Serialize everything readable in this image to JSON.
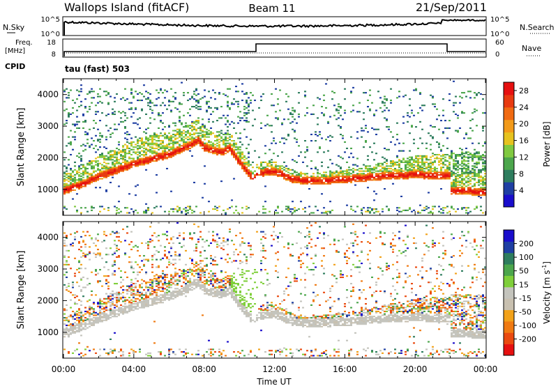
{
  "header": {
    "station": "Wallops Island (fitACF)",
    "beam": "Beam 11",
    "date": "21/Sep/2011"
  },
  "status_panels": {
    "nsky_label": "N.Sky",
    "nsky_ticks": [
      "10^5",
      "10^0"
    ],
    "nsearch_label": "N.Search",
    "nsearch_ticks": [
      "10^5",
      "10^0"
    ],
    "freq_label": "Freq.",
    "freq_unit": "[MHz]",
    "freq_ticks": [
      "18",
      "8"
    ],
    "nave_label": "Nave",
    "nave_ticks": [
      "60",
      "0"
    ],
    "cpid_label": "CPID",
    "cpid_value": "tau (fast) 503"
  },
  "colors": {
    "power_scale": [
      "#1a0dcc",
      "#1f3fa3",
      "#2e7d5e",
      "#4ca64c",
      "#80c940",
      "#e6c21f",
      "#f29a1a",
      "#f06a12",
      "#e83a10",
      "#e61010"
    ],
    "velocity_scale": [
      "#1a0dcc",
      "#1f3fa3",
      "#2e7d5e",
      "#4ca64c",
      "#7fcf3a",
      "#c4c4bd",
      "#c8c0b0",
      "#f2a21a",
      "#f07a12",
      "#ea4a10",
      "#e61010"
    ]
  },
  "chart_data": [
    {
      "type": "heatmap",
      "name": "power",
      "xlabel": "",
      "ylabel": "Slant Range [km]",
      "x_ticks": [
        "00:00",
        "04:00",
        "08:00",
        "12:00",
        "16:00",
        "20:00",
        "00:00"
      ],
      "xlim_hours": [
        0,
        24
      ],
      "y_ticks": [
        "1000",
        "2000",
        "3000",
        "4000"
      ],
      "ylim": [
        180,
        4500
      ],
      "colorbar_label": "Power [dB]",
      "colorbar_ticks": [
        "4",
        "8",
        "12",
        "16",
        "20",
        "24",
        "28"
      ],
      "colorbar_range": [
        0,
        30
      ],
      "main_echo_band_km": [
        [
          0,
          950
        ],
        [
          1,
          1150
        ],
        [
          2,
          1400
        ],
        [
          3,
          1600
        ],
        [
          4,
          1800
        ],
        [
          5,
          1950
        ],
        [
          6,
          2100
        ],
        [
          7,
          2350
        ],
        [
          7.6,
          2550
        ],
        [
          8,
          2300
        ],
        [
          9,
          2150
        ],
        [
          9.4,
          2300
        ],
        [
          10,
          1800
        ],
        [
          10.8,
          1300
        ],
        [
          11,
          1500
        ],
        [
          12,
          1550
        ],
        [
          13,
          1300
        ],
        [
          14,
          1250
        ],
        [
          16,
          1300
        ],
        [
          18,
          1400
        ],
        [
          20,
          1450
        ],
        [
          22,
          1400
        ],
        [
          22,
          950
        ],
        [
          24,
          900
        ]
      ],
      "grid": false
    },
    {
      "type": "heatmap",
      "name": "velocity",
      "xlabel": "Time UT",
      "ylabel": "Slant Range [km]",
      "x_ticks": [
        "00:00",
        "04:00",
        "08:00",
        "12:00",
        "16:00",
        "20:00",
        "00:00"
      ],
      "xlim_hours": [
        0,
        24
      ],
      "y_ticks": [
        "1000",
        "2000",
        "3000",
        "4000"
      ],
      "ylim": [
        180,
        4500
      ],
      "colorbar_label": "Velocity [m s^-1]",
      "colorbar_ticks": [
        "200",
        "100",
        "50",
        "15",
        "-15",
        "-50",
        "-100",
        "-200"
      ],
      "grid": false
    }
  ]
}
